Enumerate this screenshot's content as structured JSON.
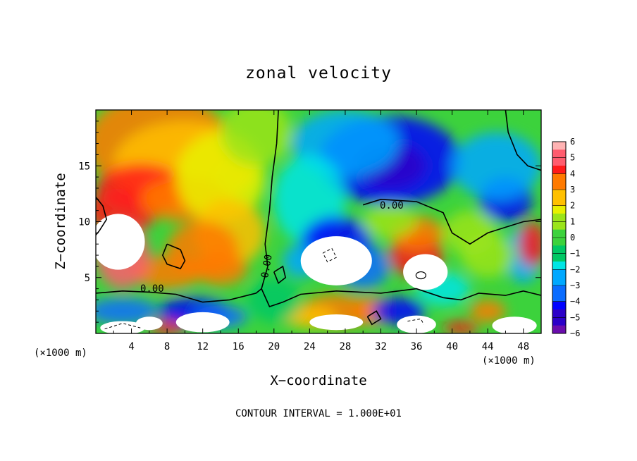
{
  "chart_data": {
    "type": "heatmap",
    "title": "zonal velocity",
    "xlabel": "X−coordinate",
    "ylabel": "Z−coordinate",
    "x_unit_left": "(×1000 m)",
    "x_unit_right": "(×1000 m)",
    "xlim": [
      0,
      50
    ],
    "ylim": [
      0,
      20
    ],
    "x_ticks": [
      "4",
      "8",
      "12",
      "16",
      "20",
      "24",
      "28",
      "32",
      "36",
      "40",
      "44",
      "48"
    ],
    "y_ticks": [
      "5",
      "10",
      "15"
    ],
    "colorbar": {
      "levels": [
        "6",
        "5",
        "4",
        "3",
        "2",
        "1",
        "0",
        "−1",
        "−2",
        "−3",
        "−4",
        "−5",
        "−6"
      ],
      "range": [
        -6,
        6
      ]
    },
    "contour_label": "0.00",
    "contour_interval_text": "CONTOUR INTERVAL = 1.000E+01",
    "regions_out_of_range": "white"
  }
}
